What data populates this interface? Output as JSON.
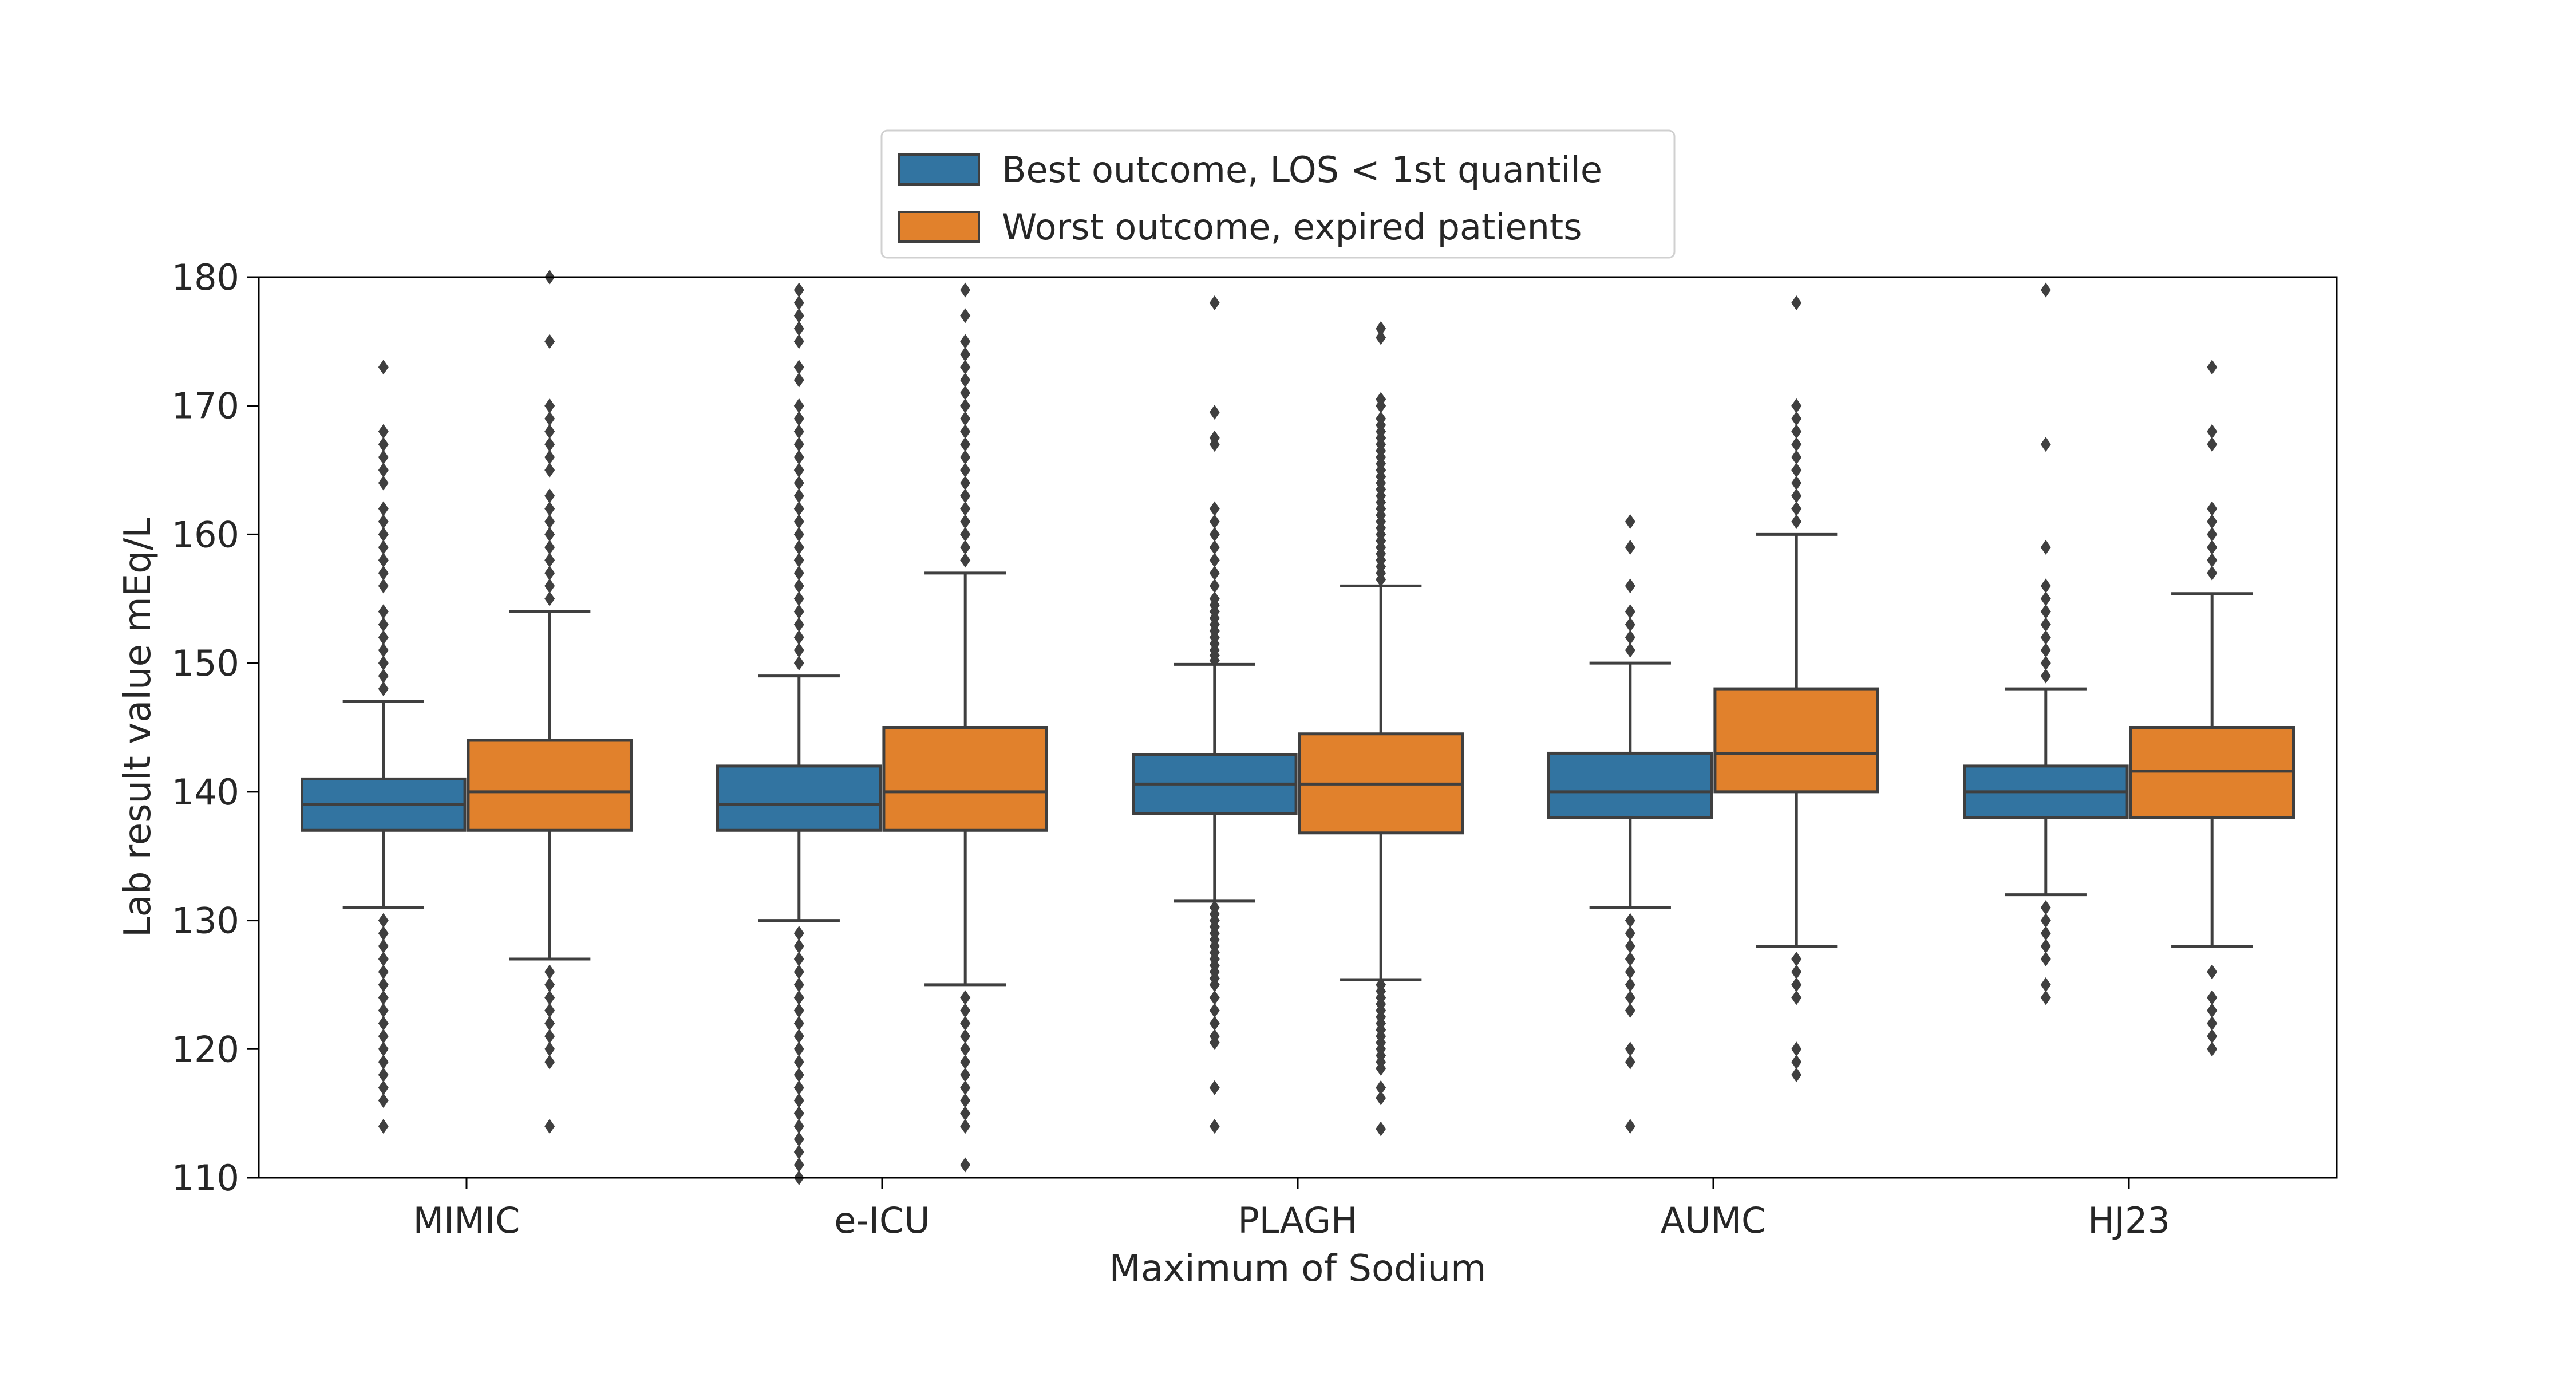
{
  "chart_data": {
    "type": "box",
    "title": "",
    "xlabel": "Maximum of Sodium",
    "ylabel": "Lab result value mEq/L",
    "ylim": [
      110,
      180
    ],
    "yticks": [
      110,
      120,
      130,
      140,
      150,
      160,
      170,
      180
    ],
    "categories": [
      "MIMIC",
      "e-ICU",
      "PLAGH",
      "AUMC",
      "HJ23"
    ],
    "legend": {
      "placement": "top-center",
      "outside_plot": true
    },
    "grid": false,
    "series": [
      {
        "name": "Best outcome, LOS < 1st quantile",
        "color": "#3274a1",
        "boxes": [
          {
            "whislo": 131,
            "q1": 137,
            "med": 139,
            "q3": 141,
            "whishi": 147,
            "fliers": [
              114,
              116,
              117,
              118,
              119,
              120,
              121,
              122,
              123,
              124,
              125,
              126,
              127,
              128,
              129,
              130,
              148,
              149,
              150,
              151,
              152,
              153,
              154,
              156,
              157,
              158,
              159,
              160,
              161,
              162,
              164,
              165,
              166,
              167,
              168,
              173
            ]
          },
          {
            "whislo": 130,
            "q1": 137,
            "med": 139,
            "q3": 142,
            "whishi": 149,
            "fliers": [
              110,
              111,
              112,
              113,
              114,
              115,
              116,
              117,
              118,
              119,
              120,
              121,
              122,
              123,
              124,
              125,
              126,
              127,
              128,
              129,
              150,
              151,
              152,
              153,
              154,
              155,
              156,
              157,
              158,
              159,
              160,
              161,
              162,
              163,
              164,
              165,
              166,
              167,
              168,
              169,
              170,
              172,
              173,
              175,
              176,
              177,
              178,
              179
            ]
          },
          {
            "whislo": 131.5,
            "q1": 138.3,
            "med": 140.6,
            "q3": 142.9,
            "whishi": 149.9,
            "fliers": [
              114,
              117,
              120.5,
              121,
              122,
              123,
              124,
              125,
              125.5,
              126,
              126.5,
              127,
              127.5,
              128,
              128.5,
              129,
              129.5,
              130,
              130.5,
              131,
              150.2,
              150.6,
              151,
              151.5,
              152,
              152.5,
              153,
              153.5,
              154,
              154.5,
              155,
              156,
              157,
              158,
              159,
              160,
              161,
              162,
              167,
              167.5,
              169.5,
              178
            ]
          },
          {
            "whislo": 131,
            "q1": 138,
            "med": 140,
            "q3": 143,
            "whishi": 150,
            "fliers": [
              114,
              119,
              120,
              123,
              124,
              125,
              126,
              127,
              128,
              129,
              130,
              151,
              152,
              153,
              154,
              156,
              159,
              161
            ]
          },
          {
            "whislo": 132,
            "q1": 138,
            "med": 140,
            "q3": 142,
            "whishi": 148,
            "fliers": [
              124,
              125,
              127,
              128,
              129,
              130,
              131,
              149,
              150,
              151,
              152,
              153,
              154,
              155,
              156,
              159,
              167,
              179
            ]
          }
        ]
      },
      {
        "name": "Worst outcome, expired patients",
        "color": "#e1812c",
        "boxes": [
          {
            "whislo": 127,
            "q1": 137,
            "med": 140,
            "q3": 144,
            "whishi": 154,
            "fliers": [
              114,
              119,
              120,
              121,
              122,
              123,
              124,
              125,
              126,
              155,
              156,
              157,
              158,
              159,
              160,
              161,
              162,
              163,
              165,
              166,
              167,
              168,
              169,
              170,
              175,
              180
            ]
          },
          {
            "whislo": 125,
            "q1": 137,
            "med": 140,
            "q3": 145,
            "whishi": 157,
            "fliers": [
              111,
              114,
              115,
              116,
              117,
              118,
              119,
              120,
              121,
              122,
              123,
              124,
              158,
              159,
              160,
              161,
              162,
              163,
              164,
              165,
              166,
              167,
              168,
              169,
              170,
              171,
              172,
              173,
              174,
              175,
              177,
              179
            ]
          },
          {
            "whislo": 125.4,
            "q1": 136.8,
            "med": 140.6,
            "q3": 144.5,
            "whishi": 156,
            "fliers": [
              113.8,
              116.2,
              117,
              118.5,
              119,
              119.5,
              120,
              120.5,
              121,
              121.5,
              122,
              122.5,
              123,
              123.5,
              124,
              124.5,
              125,
              156.5,
              157,
              157.5,
              158,
              158.5,
              159,
              159.5,
              160,
              160.5,
              161,
              161.5,
              162,
              162.5,
              163,
              163.5,
              164,
              164.5,
              165,
              165.5,
              166,
              166.5,
              167,
              167.5,
              168,
              168.5,
              169,
              170,
              170.5,
              175.3,
              176
            ]
          },
          {
            "whislo": 128,
            "q1": 140,
            "med": 143,
            "q3": 148,
            "whishi": 160,
            "fliers": [
              118,
              119,
              120,
              124,
              125,
              126,
              127,
              161,
              162,
              163,
              164,
              165,
              166,
              167,
              168,
              169,
              170,
              178
            ]
          },
          {
            "whislo": 128,
            "q1": 138,
            "med": 141.6,
            "q3": 145,
            "whishi": 155.4,
            "fliers": [
              120,
              121,
              122,
              123,
              124,
              126,
              157,
              158,
              159,
              160,
              161,
              162,
              167,
              168,
              173
            ]
          }
        ]
      }
    ]
  }
}
